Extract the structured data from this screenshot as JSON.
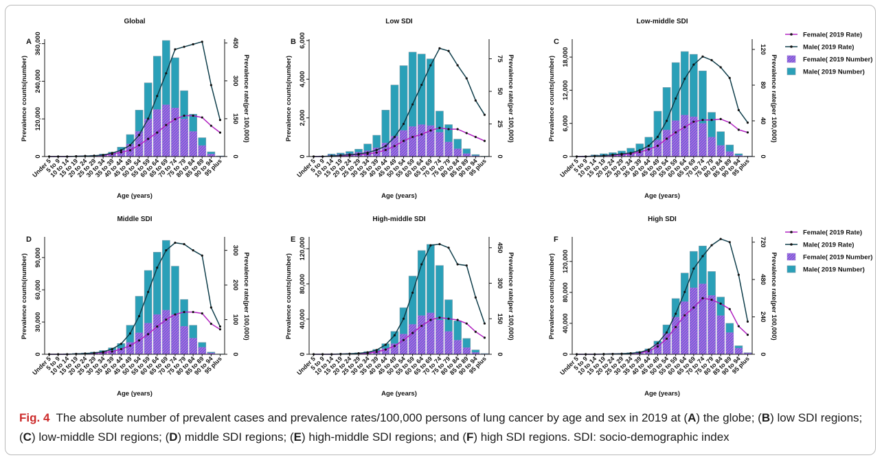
{
  "caption": {
    "label": "Fig. 4",
    "text_html": "The absolute number of prevalent cases and prevalence rates/100,000 persons of lung cancer by age and sex in 2019 at (<b>A</b>) the globe; (<b>B</b>) low SDI regions; (<b>C</b>) low-middle SDI regions; (<b>D</b>) middle SDI regions; (<b>E</b>) high-middle SDI regions; and (<b>F</b>) high SDI regions. SDI: socio-demographic index"
  },
  "legend": {
    "female_rate": "Female( 2019 Rate)",
    "male_rate": "Male( 2019 Rate)",
    "female_number": "Female( 2019 Number)",
    "male_number": "Male( 2019 Number)"
  },
  "colors": {
    "male_bar": "#2aa0b8",
    "male_bar_stroke": "#7a9aa8",
    "female_bar_fill": "#6a5fd8",
    "female_hatch": "#c06ee0",
    "female_line": "#b020c0",
    "male_line": "#0e3d4a"
  },
  "chart_data": [
    {
      "type": "bar",
      "panel": "A",
      "title": "Global",
      "xlabel": "Age (years)",
      "ylabel": "Prevalence counts(number)",
      "y2label": "Prevalence rate(per 100,000)",
      "categories": [
        "Under 5",
        "5 to 9",
        "10 to 14",
        "15 to 19",
        "20 to 24",
        "25 to 29",
        "30 to 34",
        "35 to 39",
        "40 to 44",
        "45 to 49",
        "50 to 54",
        "55 to 59",
        "60 to 64",
        "65 to 69",
        "70 to 74",
        "75 to 79",
        "80 to 84",
        "85 to 89",
        "90 to 94",
        "95 plus"
      ],
      "ylim": [
        0,
        370000
      ],
      "yticks": [
        0,
        120000,
        240000,
        360000
      ],
      "ytick_labels": [
        "0",
        "120,000",
        "240,000",
        "360,000"
      ],
      "y2lim": [
        0,
        460
      ],
      "y2ticks": [
        0,
        150,
        300,
        450
      ],
      "y2tick_labels": [
        "0",
        "150",
        "300",
        "450"
      ],
      "series": [
        {
          "name": "Male( 2019 Number)",
          "kind": "bar",
          "values": [
            0,
            0,
            300,
            1000,
            2000,
            4000,
            8000,
            14000,
            30000,
            70000,
            148000,
            235000,
            320000,
            370000,
            315000,
            210000,
            135000,
            60000,
            15000,
            2000
          ]
        },
        {
          "name": "Female( 2019 Number)",
          "kind": "bar",
          "values": [
            0,
            0,
            200,
            800,
            1500,
            3000,
            6000,
            10000,
            20000,
            40000,
            80000,
            120000,
            150000,
            165000,
            155000,
            120000,
            80000,
            35000,
            8000,
            1000
          ]
        },
        {
          "name": "Female( 2019 Rate)",
          "kind": "line",
          "axis": "right",
          "values": [
            0,
            0,
            0,
            1,
            2,
            3,
            5,
            10,
            17,
            25,
            45,
            70,
            95,
            125,
            148,
            162,
            162,
            155,
            122,
            95
          ]
        },
        {
          "name": "Male( 2019 Rate)",
          "kind": "line",
          "axis": "right",
          "values": [
            0,
            0,
            0,
            1,
            2,
            3,
            6,
            14,
            25,
            45,
            85,
            150,
            240,
            330,
            425,
            435,
            445,
            455,
            283,
            145
          ]
        }
      ]
    },
    {
      "type": "bar",
      "panel": "B",
      "title": "Low SDI",
      "xlabel": "Age (years)",
      "ylabel": "Prevalence counts(number)",
      "y2label": "Prevalence rate(per 100,000)",
      "categories": [
        "Under 5",
        "5 to 9",
        "10 to 14",
        "15 to 19",
        "20 to 24",
        "25 to 29",
        "30 to 34",
        "35 to 39",
        "40 to 44",
        "45 to 49",
        "50 to 54",
        "55 to 59",
        "60 to 64",
        "65 to 69",
        "70 to 74",
        "75 to 79",
        "80 to 84",
        "85 to 89",
        "90 to 94",
        "95 plus"
      ],
      "ylim": [
        0,
        6000
      ],
      "yticks": [
        0,
        2000,
        4000,
        6000
      ],
      "ytick_labels": [
        "0",
        "2,000",
        "4,000",
        "6,000"
      ],
      "y2lim": [
        0,
        89
      ],
      "y2ticks": [
        0,
        25,
        50,
        75
      ],
      "y2tick_labels": [
        "0",
        "25",
        "50",
        "75"
      ],
      "series": [
        {
          "name": "Male( 2019 Number)",
          "kind": "bar",
          "values": [
            10,
            30,
            130,
            180,
            260,
            380,
            650,
            1100,
            2400,
            3700,
            4700,
            5400,
            5300,
            5050,
            2350,
            1650,
            900,
            400,
            100,
            20
          ]
        },
        {
          "name": "Female( 2019 Number)",
          "kind": "bar",
          "values": [
            5,
            15,
            80,
            110,
            150,
            220,
            300,
            450,
            700,
            1050,
            1350,
            1550,
            1650,
            1600,
            1250,
            750,
            400,
            150,
            40,
            10
          ]
        },
        {
          "name": "Female( 2019 Rate)",
          "kind": "line",
          "axis": "right",
          "values": [
            0,
            0,
            0.3,
            0.5,
            1,
            1.5,
            2,
            3,
            5,
            8,
            12,
            15,
            17,
            20,
            22,
            21,
            21,
            18,
            15,
            12
          ]
        },
        {
          "name": "Male( 2019 Rate)",
          "kind": "line",
          "axis": "right",
          "values": [
            0,
            0,
            0.5,
            1,
            1.5,
            2,
            3,
            5,
            8,
            15,
            25,
            40,
            55,
            70,
            83,
            81,
            70,
            60,
            43,
            32
          ]
        }
      ]
    },
    {
      "type": "bar",
      "panel": "C",
      "title": "Low-middle SDI",
      "xlabel": "Age (years)",
      "ylabel": "Prevalence counts(number)",
      "y2label": "Prevalence rate(per 100,000)",
      "categories": [
        "Under 5",
        "5 to 9",
        "10 to 14",
        "15 to 19",
        "20 to 24",
        "25 to 29",
        "30 to 34",
        "35 to 39",
        "40 to 44",
        "45 to 49",
        "50 to 54",
        "55 to 59",
        "60 to 64",
        "65 to 69",
        "70 to 74",
        "75 to 79",
        "80 to 84",
        "85 to 89",
        "90 to 94",
        "95 plus"
      ],
      "ylim": [
        0,
        21000
      ],
      "yticks": [
        0,
        6000,
        12000,
        18000
      ],
      "ytick_labels": [
        "0",
        "6,000",
        "12,000",
        "18,000"
      ],
      "y2lim": [
        0,
        130
      ],
      "y2ticks": [
        0,
        40,
        80,
        120
      ],
      "y2tick_labels": [
        "0",
        "40",
        "80",
        "120"
      ],
      "series": [
        {
          "name": "Male( 2019 Number)",
          "kind": "bar",
          "values": [
            50,
            100,
            300,
            500,
            700,
            1000,
            1500,
            2300,
            3500,
            8200,
            12500,
            17000,
            19000,
            18500,
            15500,
            8000,
            4500,
            2100,
            500,
            100
          ]
        },
        {
          "name": "Female( 2019 Number)",
          "kind": "bar",
          "values": [
            20,
            50,
            150,
            250,
            350,
            500,
            700,
            1000,
            1600,
            3000,
            4800,
            6500,
            7500,
            7200,
            6000,
            3500,
            2000,
            900,
            200,
            50
          ]
        },
        {
          "name": "Female( 2019 Rate)",
          "kind": "line",
          "axis": "right",
          "values": [
            0,
            0,
            0.5,
            1,
            1.5,
            2,
            3,
            5,
            8,
            12,
            20,
            27,
            33,
            39,
            41,
            41,
            42,
            38,
            30,
            27
          ]
        },
        {
          "name": "Male( 2019 Rate)",
          "kind": "line",
          "axis": "right",
          "values": [
            0,
            0,
            0.5,
            1,
            2,
            3,
            4,
            7,
            12,
            22,
            40,
            65,
            87,
            103,
            112,
            108,
            100,
            88,
            52,
            38
          ]
        }
      ]
    },
    {
      "type": "bar",
      "panel": "D",
      "title": "Middle SDI",
      "xlabel": "Age (years)",
      "ylabel": "Prevalence counts(number)",
      "y2label": "Prevalence rate(per 100,000)",
      "categories": [
        "Under 5",
        "5 to 9",
        "10 to 14",
        "15 to 19",
        "20 to 24",
        "25 to 29",
        "30 to 34",
        "35 to 39",
        "40 to 44",
        "45 to 49",
        "50 to 54",
        "55 to 59",
        "60 to 64",
        "65 to 69",
        "70 to 74",
        "75 to 79",
        "80 to 84",
        "85 to 89",
        "90 to 94",
        "95 plus"
      ],
      "ylim": [
        0,
        108000
      ],
      "yticks": [
        0,
        30000,
        60000,
        90000
      ],
      "ytick_labels": [
        "0",
        "30,000",
        "60,000",
        "90,000"
      ],
      "y2lim": [
        0,
        335
      ],
      "y2ticks": [
        0,
        100,
        200,
        300
      ],
      "y2tick_labels": [
        "0",
        "100",
        "200",
        "300"
      ],
      "series": [
        {
          "name": "Male( 2019 Number)",
          "kind": "bar",
          "values": [
            100,
            200,
            500,
            800,
            1200,
            2000,
            3500,
            6000,
            10000,
            27000,
            54000,
            78000,
            95000,
            106000,
            82000,
            51000,
            27000,
            11000,
            2000,
            300
          ]
        },
        {
          "name": "Female( 2019 Number)",
          "kind": "bar",
          "values": [
            50,
            100,
            300,
            500,
            700,
            1100,
            2000,
            3500,
            5500,
            11000,
            20000,
            29000,
            37000,
            41000,
            37000,
            26000,
            15000,
            6500,
            1200,
            200
          ]
        },
        {
          "name": "Female( 2019 Rate)",
          "kind": "line",
          "axis": "right",
          "values": [
            0,
            0,
            0,
            1,
            2,
            3,
            5,
            8,
            15,
            25,
            40,
            58,
            80,
            100,
            115,
            122,
            122,
            118,
            88,
            72
          ]
        },
        {
          "name": "Male( 2019 Rate)",
          "kind": "line",
          "axis": "right",
          "values": [
            0,
            0,
            0,
            1,
            2,
            4,
            7,
            15,
            30,
            60,
            110,
            180,
            250,
            300,
            322,
            318,
            300,
            285,
            135,
            80
          ]
        }
      ]
    },
    {
      "type": "bar",
      "panel": "E",
      "title": "High-middle SDI",
      "xlabel": "Age (years)",
      "ylabel": "Prevalence counts(number)",
      "y2label": "Prevalence rate(per 100,000)",
      "categories": [
        "Under 5",
        "5 to 9",
        "10 to 14",
        "15 to 19",
        "20 to 24",
        "25 to 29",
        "30 to 34",
        "35 to 39",
        "40 to 44",
        "45 to 49",
        "50 to 54",
        "55 to 59",
        "60 to 64",
        "65 to 69",
        "70 to 74",
        "75 to 79",
        "80 to 84",
        "85 to 89",
        "90 to 94",
        "95 plus"
      ],
      "ylim": [
        0,
        132000
      ],
      "yticks": [
        0,
        40000,
        80000,
        120000
      ],
      "ytick_labels": [
        "0",
        "40,000",
        "80,000",
        "120,000"
      ],
      "y2lim": [
        0,
        490
      ],
      "y2ticks": [
        0,
        150,
        300,
        450
      ],
      "y2tick_labels": [
        "0",
        "150",
        "300",
        "450"
      ],
      "series": [
        {
          "name": "Male( 2019 Number)",
          "kind": "bar",
          "values": [
            100,
            200,
            400,
            700,
            1000,
            1700,
            3000,
            5500,
            12000,
            26000,
            53000,
            89000,
            118000,
            125000,
            101000,
            62000,
            38000,
            18000,
            5000,
            800
          ]
        },
        {
          "name": "Female( 2019 Number)",
          "kind": "bar",
          "values": [
            50,
            100,
            200,
            400,
            600,
            1000,
            2000,
            3500,
            6500,
            12000,
            23000,
            34000,
            44000,
            47000,
            39000,
            26000,
            16000,
            7500,
            2000,
            400
          ]
        },
        {
          "name": "Female( 2019 Rate)",
          "kind": "line",
          "axis": "right",
          "values": [
            0,
            0,
            0,
            1,
            2,
            3,
            5,
            10,
            20,
            35,
            60,
            90,
            120,
            145,
            155,
            150,
            145,
            130,
            95,
            70
          ]
        },
        {
          "name": "Male( 2019 Rate)",
          "kind": "line",
          "axis": "right",
          "values": [
            0,
            0,
            0,
            1,
            2,
            4,
            8,
            18,
            40,
            80,
            150,
            260,
            380,
            460,
            465,
            450,
            380,
            375,
            240,
            130
          ]
        }
      ]
    },
    {
      "type": "bar",
      "panel": "F",
      "title": "High SDI",
      "xlabel": "Age (years)",
      "ylabel": "Prevalence counts(number)",
      "y2label": "Prevalence rate(per 100,000)",
      "categories": [
        "Under 5",
        "5 to 9",
        "10 to 14",
        "15 to 19",
        "20 to 24",
        "25 to 29",
        "30 to 34",
        "35 to 39",
        "40 to 44",
        "45 to 49",
        "50 to 54",
        "55 to 59",
        "60 to 64",
        "65 to 69",
        "70 to 74",
        "75 to 79",
        "80 to 84",
        "85 to 89",
        "90 to 94",
        "95 plus"
      ],
      "ylim": [
        0,
        150000
      ],
      "yticks": [
        0,
        40000,
        80000,
        120000
      ],
      "ytick_labels": [
        "0",
        "40,000",
        "80,000",
        "120,000"
      ],
      "y2lim": [
        0,
        745
      ],
      "y2ticks": [
        0,
        240,
        480,
        720
      ],
      "y2tick_labels": [
        "0",
        "240",
        "480",
        "720"
      ],
      "series": [
        {
          "name": "Male( 2019 Number)",
          "kind": "bar",
          "values": [
            100,
            100,
            300,
            500,
            800,
            1200,
            2000,
            3500,
            7000,
            17000,
            38000,
            72000,
            105000,
            133000,
            140000,
            107000,
            74000,
            40000,
            11000,
            2000
          ]
        },
        {
          "name": "Female( 2019 Number)",
          "kind": "bar",
          "values": [
            50,
            50,
            150,
            300,
            500,
            800,
            1500,
            2500,
            5500,
            13000,
            27000,
            48000,
            68000,
            86000,
            91000,
            76000,
            50000,
            28000,
            8000,
            1500
          ]
        },
        {
          "name": "Female( 2019 Rate)",
          "kind": "line",
          "axis": "right",
          "values": [
            0,
            0,
            0,
            1,
            2,
            3,
            5,
            10,
            20,
            50,
            100,
            175,
            250,
            300,
            360,
            350,
            325,
            290,
            180,
            125
          ]
        },
        {
          "name": "Male( 2019 Rate)",
          "kind": "line",
          "axis": "right",
          "values": [
            0,
            0,
            0,
            1,
            2,
            3,
            6,
            12,
            30,
            70,
            140,
            260,
            400,
            550,
            630,
            700,
            740,
            720,
            510,
            210
          ]
        }
      ]
    }
  ]
}
